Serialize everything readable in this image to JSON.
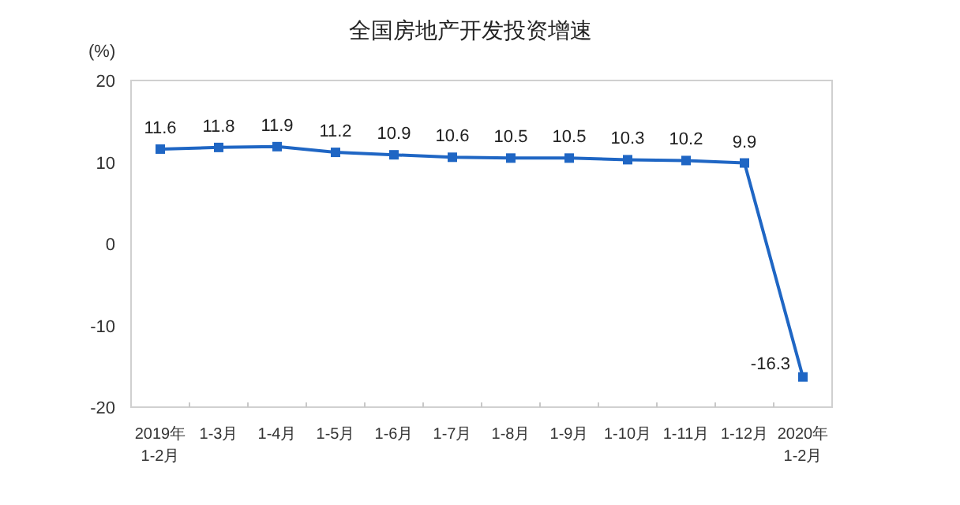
{
  "chart_data": {
    "type": "line",
    "title": "全国房地产开发投资增速",
    "ylabel": "(%)",
    "categories": [
      "2019年\n1-2月",
      "1-3月",
      "1-4月",
      "1-5月",
      "1-6月",
      "1-7月",
      "1-8月",
      "1-9月",
      "1-10月",
      "1-11月",
      "1-12月",
      "2020年\n1-2月"
    ],
    "series": [
      {
        "color": "#1f66c4",
        "values": [
          11.6,
          11.8,
          11.9,
          11.2,
          10.9,
          10.6,
          10.5,
          10.5,
          10.3,
          10.2,
          9.9,
          -16.3
        ]
      }
    ],
    "ylim": [
      -20,
      20
    ],
    "yticks": [
      -20,
      -10,
      0,
      10,
      20
    ],
    "grid": false,
    "marker": "square",
    "line_style": "solid",
    "data_labels": true
  }
}
